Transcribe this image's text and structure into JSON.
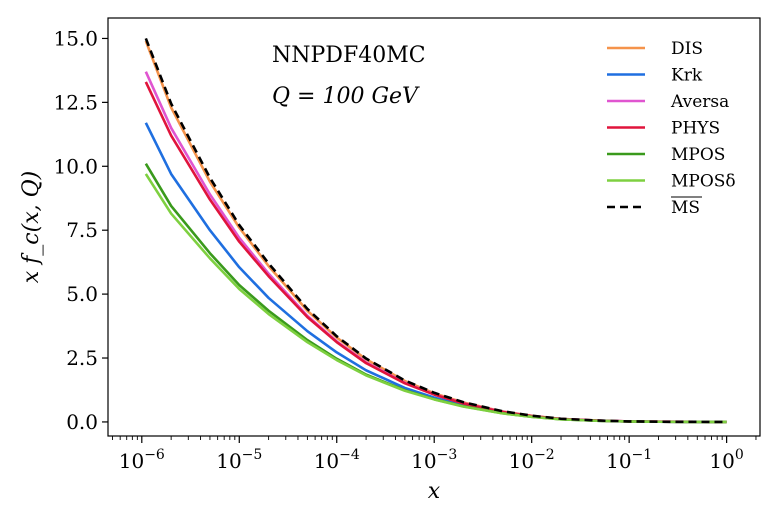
{
  "chart_data": {
    "type": "line",
    "title": "",
    "annotations": [
      "NNPDF40MC",
      "Q = 100 GeV"
    ],
    "xlabel": "x",
    "ylabel": "x f_c(x, Q)",
    "xscale": "log",
    "xlim": [
      4.5e-07,
      2.2
    ],
    "ylim": [
      -0.55,
      15.8
    ],
    "yticks": [
      "0.0",
      "2.5",
      "5.0",
      "7.5",
      "10.0",
      "12.5",
      "15.0"
    ],
    "ytick_values": [
      0,
      2.5,
      5,
      7.5,
      10,
      12.5,
      15
    ],
    "xticks": [
      {
        "base": "10",
        "exp": "−6",
        "value": 1e-06
      },
      {
        "base": "10",
        "exp": "−5",
        "value": 1e-05
      },
      {
        "base": "10",
        "exp": "−4",
        "value": 0.0001
      },
      {
        "base": "10",
        "exp": "−3",
        "value": 0.001
      },
      {
        "base": "10",
        "exp": "−2",
        "value": 0.01
      },
      {
        "base": "10",
        "exp": "−1",
        "value": 0.1
      },
      {
        "base": "10",
        "exp": "0",
        "value": 1
      }
    ],
    "legend_position": "top-right",
    "x": [
      1.1e-06,
      2e-06,
      5e-06,
      1e-05,
      2e-05,
      5e-05,
      0.0001,
      0.0002,
      0.0005,
      0.001,
      0.002,
      0.005,
      0.01,
      0.02,
      0.05,
      0.1,
      0.2,
      0.5,
      1
    ],
    "series": [
      {
        "name": "DIS",
        "color": "#f5934b",
        "dash": "solid",
        "values": [
          14.9,
          12.3,
          9.4,
          7.6,
          6.1,
          4.35,
          3.3,
          2.45,
          1.6,
          1.12,
          0.76,
          0.41,
          0.24,
          0.12,
          0.05,
          0.02,
          0.008,
          0.003,
          0.0
        ]
      },
      {
        "name": "Krk",
        "color": "#1f6fe0",
        "dash": "solid",
        "values": [
          11.7,
          9.7,
          7.5,
          6.05,
          4.85,
          3.55,
          2.72,
          2.02,
          1.33,
          0.95,
          0.65,
          0.36,
          0.21,
          0.11,
          0.045,
          0.018,
          0.007,
          0.002,
          0.0
        ]
      },
      {
        "name": "Aversa",
        "color": "#e055d0",
        "dash": "solid",
        "values": [
          13.7,
          11.5,
          8.9,
          7.2,
          5.8,
          4.15,
          3.15,
          2.33,
          1.53,
          1.08,
          0.73,
          0.4,
          0.23,
          0.12,
          0.05,
          0.02,
          0.008,
          0.003,
          0.0
        ]
      },
      {
        "name": "PHYS",
        "color": "#e0143c",
        "dash": "solid",
        "values": [
          13.3,
          11.2,
          8.7,
          7.05,
          5.7,
          4.1,
          3.12,
          2.3,
          1.51,
          1.07,
          0.72,
          0.39,
          0.23,
          0.115,
          0.048,
          0.02,
          0.008,
          0.003,
          0.0
        ]
      },
      {
        "name": "MPOS",
        "color": "#3a9a1c",
        "dash": "solid",
        "values": [
          10.1,
          8.45,
          6.6,
          5.35,
          4.35,
          3.2,
          2.47,
          1.85,
          1.24,
          0.89,
          0.61,
          0.34,
          0.2,
          0.1,
          0.042,
          0.017,
          0.007,
          0.002,
          0.0
        ]
      },
      {
        "name": "MPOSδ",
        "color": "#7ed040",
        "dash": "solid",
        "values": [
          9.7,
          8.15,
          6.4,
          5.2,
          4.22,
          3.12,
          2.42,
          1.82,
          1.22,
          0.88,
          0.6,
          0.335,
          0.2,
          0.1,
          0.042,
          0.017,
          0.007,
          0.002,
          0.0
        ]
      },
      {
        "name": "MS",
        "overline": true,
        "color": "#000000",
        "dash": "dashed",
        "values": [
          15.0,
          12.45,
          9.55,
          7.7,
          6.2,
          4.42,
          3.35,
          2.48,
          1.62,
          1.14,
          0.77,
          0.42,
          0.245,
          0.125,
          0.052,
          0.021,
          0.008,
          0.003,
          0.0
        ]
      }
    ]
  }
}
